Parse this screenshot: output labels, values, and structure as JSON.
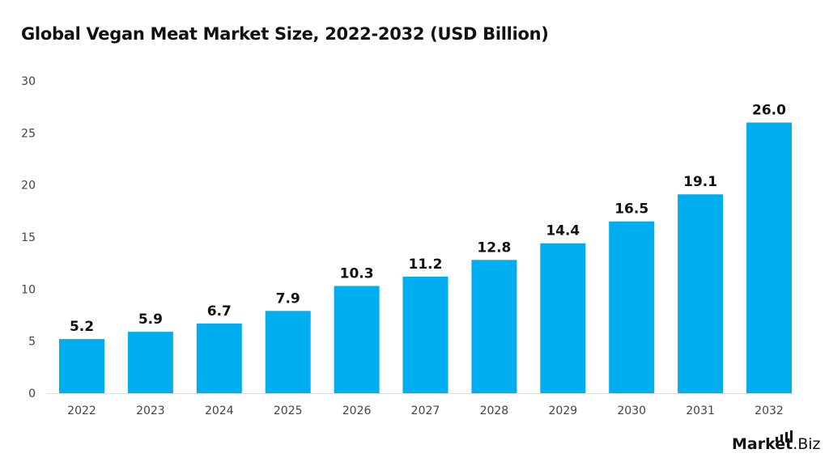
{
  "chart_data": {
    "type": "bar",
    "title": "Global Vegan Meat Market Size, 2022-2032 (USD Billion)",
    "categories": [
      "2022",
      "2023",
      "2024",
      "2025",
      "2026",
      "2027",
      "2028",
      "2029",
      "2030",
      "2031",
      "2032"
    ],
    "values": [
      5.2,
      5.9,
      6.7,
      7.9,
      10.3,
      11.2,
      12.8,
      14.4,
      16.5,
      19.1,
      26.0
    ],
    "data_labels": [
      "5.2",
      "5.9",
      "6.7",
      "7.9",
      "10.3",
      "11.2",
      "12.8",
      "14.4",
      "16.5",
      "19.1",
      "26.0"
    ],
    "xlabel": "",
    "ylabel": "",
    "ylim": [
      0,
      30
    ],
    "yticks": [
      0,
      5,
      10,
      15,
      20,
      25,
      30
    ],
    "grid": false,
    "bar_color": "#00AEEF"
  },
  "branding": {
    "logo_main": "Market",
    "logo_suffix": ".Biz"
  }
}
